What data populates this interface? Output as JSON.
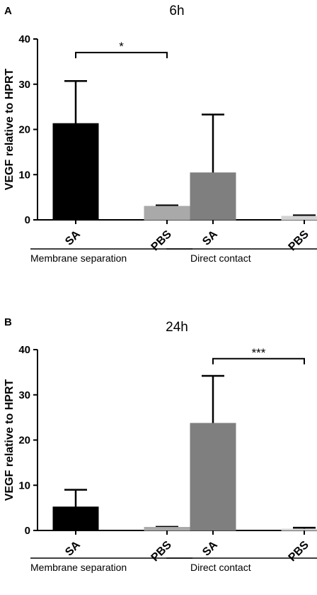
{
  "chart_data": [
    {
      "type": "bar",
      "panel": "A",
      "title": "6h",
      "ylabel": "VEGF relative to HPRT",
      "ylim": [
        0,
        40
      ],
      "yticks": [
        "0",
        "10",
        "20",
        "30",
        "40"
      ],
      "categories": [
        "SA",
        "PBS",
        "SA",
        "PBS"
      ],
      "values": [
        21.3,
        3.0,
        10.4,
        0.8
      ],
      "errors": [
        9.4,
        0.2,
        12.9,
        0.2
      ],
      "colors": [
        "#000000",
        "#a9a9a9",
        "#7f7f7f",
        "#d3d3d3"
      ],
      "groups": [
        {
          "label": "Membrane separation",
          "from": 0,
          "to": 1
        },
        {
          "label": "Direct  contact",
          "from": 2,
          "to": 3
        }
      ],
      "significance": [
        {
          "from": 0,
          "to": 1,
          "label": "*",
          "y": 37
        }
      ]
    },
    {
      "type": "bar",
      "panel": "B",
      "title": "24h",
      "ylabel": "VEGF relative to HPRT",
      "ylim": [
        0,
        40
      ],
      "yticks": [
        "0",
        "10",
        "20",
        "30",
        "40"
      ],
      "categories": [
        "SA",
        "PBS",
        "SA",
        "PBS"
      ],
      "values": [
        5.2,
        0.7,
        23.7,
        0.3
      ],
      "errors": [
        3.8,
        0.1,
        10.5,
        0.3
      ],
      "colors": [
        "#000000",
        "#a9a9a9",
        "#7f7f7f",
        "#d3d3d3"
      ],
      "groups": [
        {
          "label": "Membrane separation",
          "from": 0,
          "to": 1
        },
        {
          "label": "Direct  contact",
          "from": 2,
          "to": 3
        }
      ],
      "significance": [
        {
          "from": 2,
          "to": 3,
          "label": "***",
          "y": 38
        }
      ]
    }
  ]
}
